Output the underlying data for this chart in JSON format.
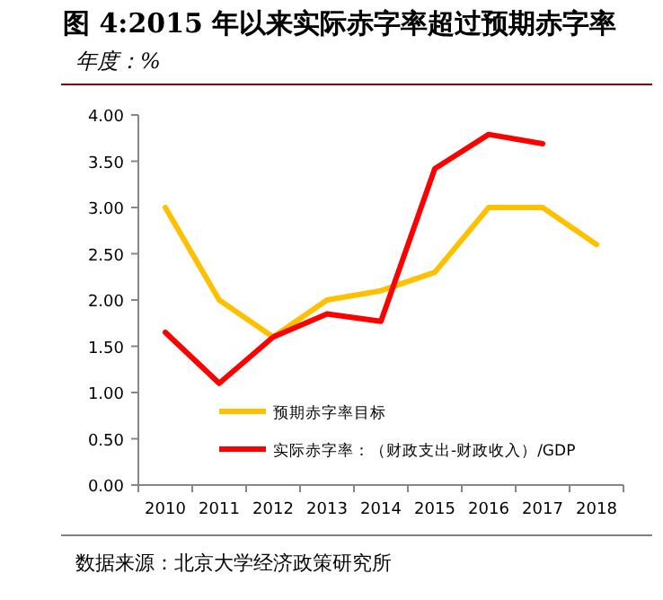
{
  "chart_data": {
    "type": "line",
    "title": "图 4:2015 年以来实际赤字率超过预期赤字率",
    "subtitle": "年度：%",
    "categories": [
      "2010",
      "2011",
      "2012",
      "2013",
      "2014",
      "2015",
      "2016",
      "2017",
      "2018"
    ],
    "series": [
      {
        "name": "预期赤字率目标",
        "color": "#ffc000",
        "values": [
          3.0,
          2.0,
          1.6,
          2.0,
          2.1,
          2.3,
          3.0,
          3.0,
          2.6
        ]
      },
      {
        "name": "实际赤字率：（财政支出-财政收入）/GDP",
        "color": "#ff0000",
        "values": [
          1.65,
          1.1,
          1.6,
          1.85,
          1.77,
          3.42,
          3.79,
          3.69,
          null
        ]
      }
    ],
    "ylim": [
      0,
      4
    ],
    "yticks": [
      {
        "value": 0,
        "label": "0.00"
      },
      {
        "value": 0.5,
        "label": "0.50"
      },
      {
        "value": 1,
        "label": "1.00"
      },
      {
        "value": 1.5,
        "label": "1.50"
      },
      {
        "value": 2,
        "label": "2.00"
      },
      {
        "value": 2.5,
        "label": "2.50"
      },
      {
        "value": 3,
        "label": "3.00"
      },
      {
        "value": 3.5,
        "label": "3.50"
      },
      {
        "value": 4,
        "label": "4.00"
      }
    ],
    "grid": false,
    "legend": "bottom",
    "marker": "none",
    "line_style": "solid",
    "annotations": [
      "数据来源：北京大学经济政策研究所"
    ]
  }
}
